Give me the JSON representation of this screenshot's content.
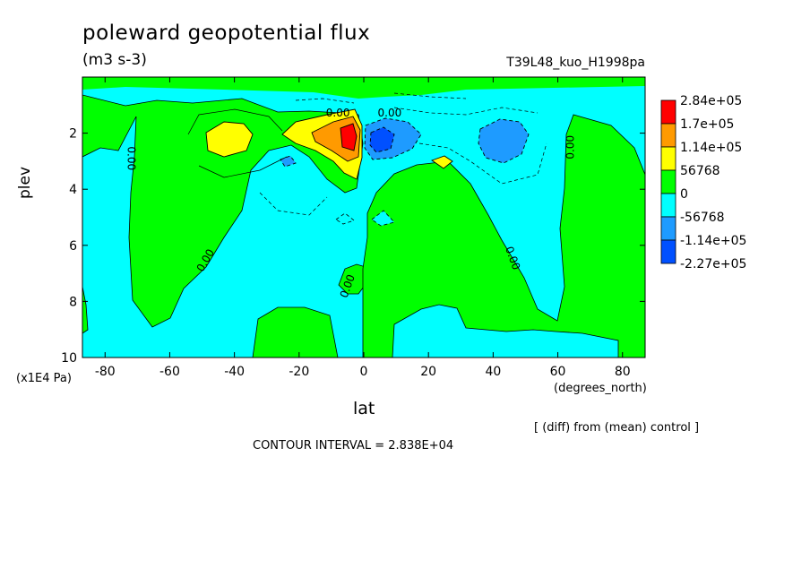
{
  "header": {
    "title": "poleward geopotential flux",
    "subtitle": "(m3 s-3)",
    "run": "T39L48_kuo_H1998pa"
  },
  "footer": {
    "diff_note": "[ (diff) from (mean) control ]",
    "contour_interval": "CONTOUR INTERVAL = 2.838E+04"
  },
  "chart_data": {
    "type": "heatmap",
    "title": "poleward geopotential flux",
    "subtitle": "(m3 s-3)",
    "xlabel": "lat",
    "x_unit": "(degrees_north)",
    "ylabel": "plev",
    "y_unit": "(x1E4 Pa)",
    "xlim": [
      -87,
      87
    ],
    "ylim": [
      10,
      0
    ],
    "x_ticks": [
      "-80",
      "-60",
      "-40",
      "-20",
      "0",
      "20",
      "40",
      "60",
      "80"
    ],
    "y_ticks": [
      "2",
      "4",
      "6",
      "8",
      "10"
    ],
    "contour_label": "0.00",
    "colorbar": {
      "levels": [
        "2.84e+05",
        "1.7e+05",
        "1.14e+05",
        "56768",
        "0",
        "-56768",
        "-1.14e+05",
        "-2.27e+05"
      ],
      "colors": [
        "#ff0000",
        "#ff9a00",
        "#ffff00",
        "#00ff00",
        "#00ffff",
        "#1e9bff",
        "#0050ff"
      ]
    },
    "features": [
      {
        "sign": "positive",
        "lat": -6,
        "plev": 2.3,
        "level": "2.84e+05"
      },
      {
        "sign": "positive",
        "lat": -45,
        "plev": 2.3,
        "level": "1.14e+05"
      },
      {
        "sign": "negative",
        "lat": 6,
        "plev": 2.3,
        "level": "-1.14e+05"
      },
      {
        "sign": "negative",
        "lat": 43,
        "plev": 2.4,
        "level": "-1.14e+05"
      },
      {
        "sign": "positive",
        "lat": 25,
        "plev": 3.1,
        "level": "56768"
      },
      {
        "sign": "negative",
        "lat": -23,
        "plev": 3.1,
        "level": "-56768"
      }
    ]
  }
}
